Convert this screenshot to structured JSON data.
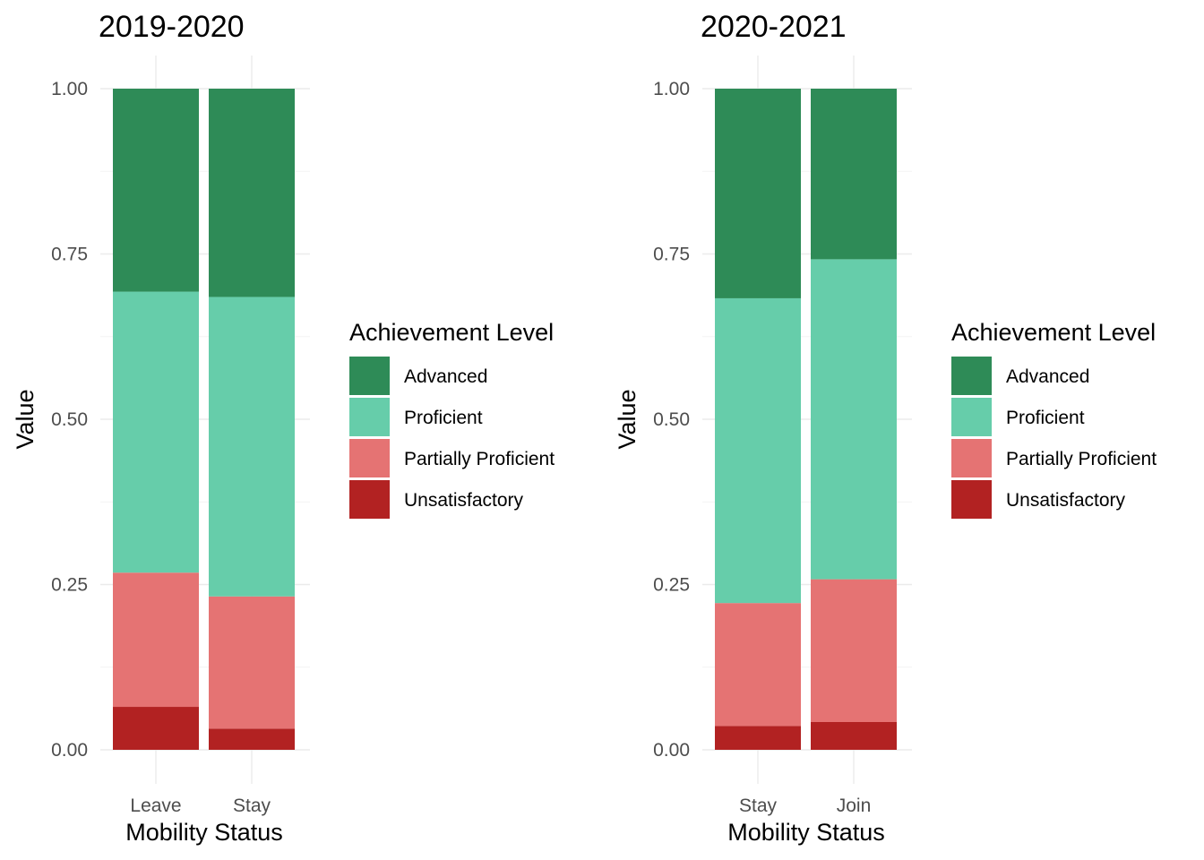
{
  "chart_data": [
    {
      "type": "bar",
      "stacked": true,
      "title": "2019-2020",
      "xlabel": "Mobility Status",
      "ylabel": "Value",
      "ylim": [
        0,
        1
      ],
      "yticks": [
        "0.00",
        "0.25",
        "0.50",
        "0.75",
        "1.00"
      ],
      "categories": [
        "Leave",
        "Stay"
      ],
      "legend_title": "Achievement Level",
      "legend_position": "right",
      "grid": true,
      "series": [
        {
          "name": "Unsatisfactory",
          "color": "#b22222",
          "values": [
            0.065,
            0.032
          ]
        },
        {
          "name": "Partially Proficient",
          "color": "#e57373",
          "values": [
            0.203,
            0.2
          ]
        },
        {
          "name": "Proficient",
          "color": "#66cdaa",
          "values": [
            0.425,
            0.453
          ]
        },
        {
          "name": "Advanced",
          "color": "#2e8b57",
          "values": [
            0.307,
            0.315
          ]
        }
      ]
    },
    {
      "type": "bar",
      "stacked": true,
      "title": "2020-2021",
      "xlabel": "Mobility Status",
      "ylabel": "Value",
      "ylim": [
        0,
        1
      ],
      "yticks": [
        "0.00",
        "0.25",
        "0.50",
        "0.75",
        "1.00"
      ],
      "categories": [
        "Stay",
        "Join"
      ],
      "legend_title": "Achievement Level",
      "legend_position": "right",
      "grid": true,
      "series": [
        {
          "name": "Unsatisfactory",
          "color": "#b22222",
          "values": [
            0.036,
            0.042
          ]
        },
        {
          "name": "Partially Proficient",
          "color": "#e57373",
          "values": [
            0.186,
            0.216
          ]
        },
        {
          "name": "Proficient",
          "color": "#66cdaa",
          "values": [
            0.461,
            0.484
          ]
        },
        {
          "name": "Advanced",
          "color": "#2e8b57",
          "values": [
            0.317,
            0.258
          ]
        }
      ]
    }
  ]
}
